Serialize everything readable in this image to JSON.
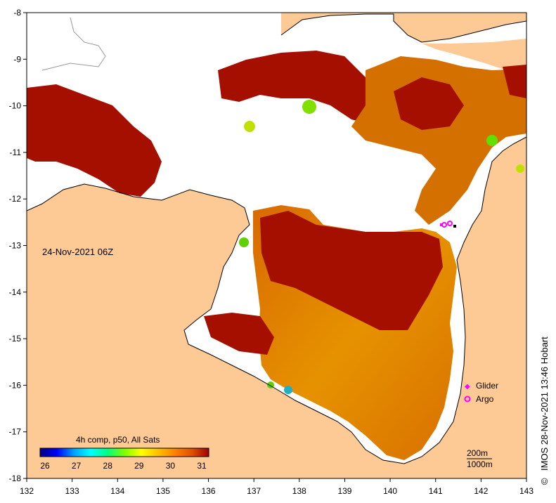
{
  "map": {
    "timestamp": "24-Nov-2021 06Z",
    "credit": "IMOS 28-Nov-2021 13:46 Hobart",
    "copyright_symbol": "©",
    "x_ticks": [
      "132",
      "133",
      "134",
      "135",
      "136",
      "137",
      "138",
      "139",
      "140",
      "141",
      "142",
      "143"
    ],
    "y_ticks": [
      "-8",
      "-9",
      "-10",
      "-11",
      "-12",
      "-13",
      "-14",
      "-15",
      "-16",
      "-17",
      "-18"
    ],
    "legend": {
      "glider_label": "Glider",
      "argo_label": "Argo",
      "glider_color": "#ff00ff",
      "argo_color": "#ff00ff"
    },
    "colorbar": {
      "title": "4h comp, p50, All Sats",
      "ticks": [
        "26",
        "27",
        "28",
        "29",
        "30",
        "31"
      ],
      "colors": [
        "#000080",
        "#0000ff",
        "#00a0ff",
        "#00ffff",
        "#00ff80",
        "#80ff00",
        "#ffff00",
        "#ffc000",
        "#ff8000",
        "#e05000",
        "#c02000",
        "#a00000"
      ]
    },
    "depth_contours": {
      "label_200": "200m",
      "label_1000": "1000m"
    },
    "colors": {
      "land": "#fdca96",
      "no_data": "#ffffff",
      "sst_hot": "#a50f00",
      "sst_warm": "#e07d00",
      "sst_mid": "#f0b400"
    }
  }
}
